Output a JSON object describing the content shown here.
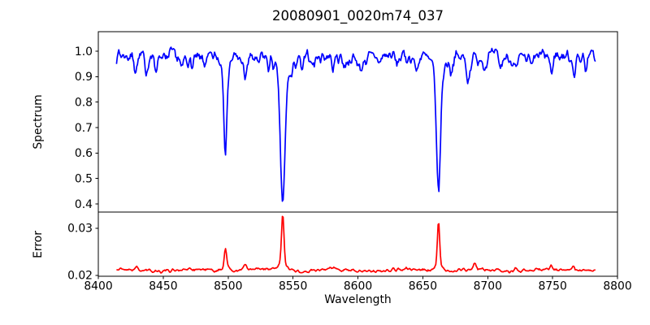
{
  "chart_data": {
    "type": "line",
    "title": "20080901_0020m74_037",
    "xlabel": "Wavelength",
    "xlim": [
      8400,
      8800
    ],
    "xticks": [
      8400,
      8450,
      8500,
      8550,
      8600,
      8650,
      8700,
      8750,
      8800
    ],
    "xtick_labels": [
      "8400",
      "8450",
      "8500",
      "8550",
      "8600",
      "8650",
      "8700",
      "8750",
      "8800"
    ],
    "background_color": "#ffffff",
    "axis_color": "#000000",
    "grid": false,
    "legend": false,
    "panels": [
      {
        "name": "spectrum",
        "ylabel": "Spectrum",
        "color": "#0000ff",
        "ylim": [
          0.368,
          1.077
        ],
        "yticks": [
          1.0,
          0.9,
          0.8,
          0.7,
          0.6,
          0.5,
          0.4
        ],
        "ytick_labels": [
          "1.0",
          "0.9",
          "0.8",
          "0.7",
          "0.6",
          "0.5",
          "0.4"
        ],
        "x_range": [
          8414,
          8783
        ],
        "x_step": 0.6,
        "baseline": 0.978,
        "noise_amp": 0.04,
        "seed": 7,
        "feature_sign": -1,
        "waves": [
          {
            "amp": 0.007,
            "period": 42,
            "phase": 2.0
          },
          {
            "amp": 0.005,
            "period": 113,
            "phase": 0.8
          }
        ],
        "features": [
          {
            "center": 8498.0,
            "amp": 0.325,
            "sigma": 1.1,
            "wing_amp": 0.05,
            "wing_sigma": 3.0
          },
          {
            "center": 8542.1,
            "amp": 0.5,
            "sigma": 1.7,
            "wing_amp": 0.095,
            "wing_sigma": 5.5
          },
          {
            "center": 8662.1,
            "amp": 0.455,
            "sigma": 1.5,
            "wing_amp": 0.085,
            "wing_sigma": 4.5
          },
          {
            "center": 8429,
            "amp": 0.045,
            "sigma": 1.1
          },
          {
            "center": 8437,
            "amp": 0.05,
            "sigma": 1.1
          },
          {
            "center": 8444,
            "amp": 0.055,
            "sigma": 1.1
          },
          {
            "center": 8452,
            "amp": 0.03,
            "sigma": 1.0
          },
          {
            "center": 8464,
            "amp": 0.055,
            "sigma": 1.1
          },
          {
            "center": 8472,
            "amp": 0.03,
            "sigma": 1.0
          },
          {
            "center": 8483,
            "amp": 0.025,
            "sigma": 1.0
          },
          {
            "center": 8513,
            "amp": 0.085,
            "sigma": 1.2
          },
          {
            "center": 8523,
            "amp": 0.04,
            "sigma": 1.0
          },
          {
            "center": 8531,
            "amp": 0.035,
            "sigma": 1.0
          },
          {
            "center": 8549,
            "amp": 0.04,
            "sigma": 1.0
          },
          {
            "center": 8557,
            "amp": 0.05,
            "sigma": 1.1
          },
          {
            "center": 8566,
            "amp": 0.03,
            "sigma": 1.0
          },
          {
            "center": 8581,
            "amp": 0.05,
            "sigma": 1.1
          },
          {
            "center": 8590,
            "amp": 0.035,
            "sigma": 1.0
          },
          {
            "center": 8602,
            "amp": 0.045,
            "sigma": 1.1
          },
          {
            "center": 8617,
            "amp": 0.03,
            "sigma": 1.0
          },
          {
            "center": 8630,
            "amp": 0.035,
            "sigma": 1.0
          },
          {
            "center": 8645,
            "amp": 0.055,
            "sigma": 1.1
          },
          {
            "center": 8672,
            "amp": 0.05,
            "sigma": 1.1
          },
          {
            "center": 8685,
            "amp": 0.08,
            "sigma": 1.2
          },
          {
            "center": 8698,
            "amp": 0.04,
            "sigma": 1.0
          },
          {
            "center": 8710,
            "amp": 0.045,
            "sigma": 1.0
          },
          {
            "center": 8722,
            "amp": 0.05,
            "sigma": 1.1
          },
          {
            "center": 8734,
            "amp": 0.04,
            "sigma": 1.0
          },
          {
            "center": 8749,
            "amp": 0.07,
            "sigma": 1.2
          },
          {
            "center": 8767,
            "amp": 0.06,
            "sigma": 1.1
          },
          {
            "center": 8776,
            "amp": 0.04,
            "sigma": 1.0
          }
        ]
      },
      {
        "name": "error",
        "ylabel": "Error",
        "color": "#ff0000",
        "ylim": [
          0.0198,
          0.0334
        ],
        "yticks": [
          0.03,
          0.02
        ],
        "ytick_labels": [
          "0.03",
          "0.02"
        ],
        "x_range": [
          8414,
          8783
        ],
        "x_step": 0.6,
        "baseline": 0.0211,
        "noise_amp": 0.0005,
        "seed": 21,
        "feature_sign": 1,
        "waves": [
          {
            "amp": 0.00018,
            "period": 55,
            "phase": 1.2
          }
        ],
        "features": [
          {
            "center": 8498.0,
            "amp": 0.0042,
            "sigma": 0.9,
            "wing_amp": 0.0008,
            "wing_sigma": 2.5
          },
          {
            "center": 8542.1,
            "amp": 0.0108,
            "sigma": 0.95,
            "wing_amp": 0.0012,
            "wing_sigma": 3.5
          },
          {
            "center": 8662.1,
            "amp": 0.0092,
            "sigma": 0.9,
            "wing_amp": 0.001,
            "wing_sigma": 3.0
          },
          {
            "center": 8429,
            "amp": 0.0006,
            "sigma": 1.0
          },
          {
            "center": 8513,
            "amp": 0.0013,
            "sigma": 1.0
          },
          {
            "center": 8581,
            "amp": 0.0004,
            "sigma": 1.0
          },
          {
            "center": 8690,
            "amp": 0.0011,
            "sigma": 1.0
          },
          {
            "center": 8722,
            "amp": 0.0005,
            "sigma": 1.0
          },
          {
            "center": 8749,
            "amp": 0.0006,
            "sigma": 1.0
          },
          {
            "center": 8766,
            "amp": 0.0009,
            "sigma": 1.0
          }
        ]
      }
    ]
  }
}
